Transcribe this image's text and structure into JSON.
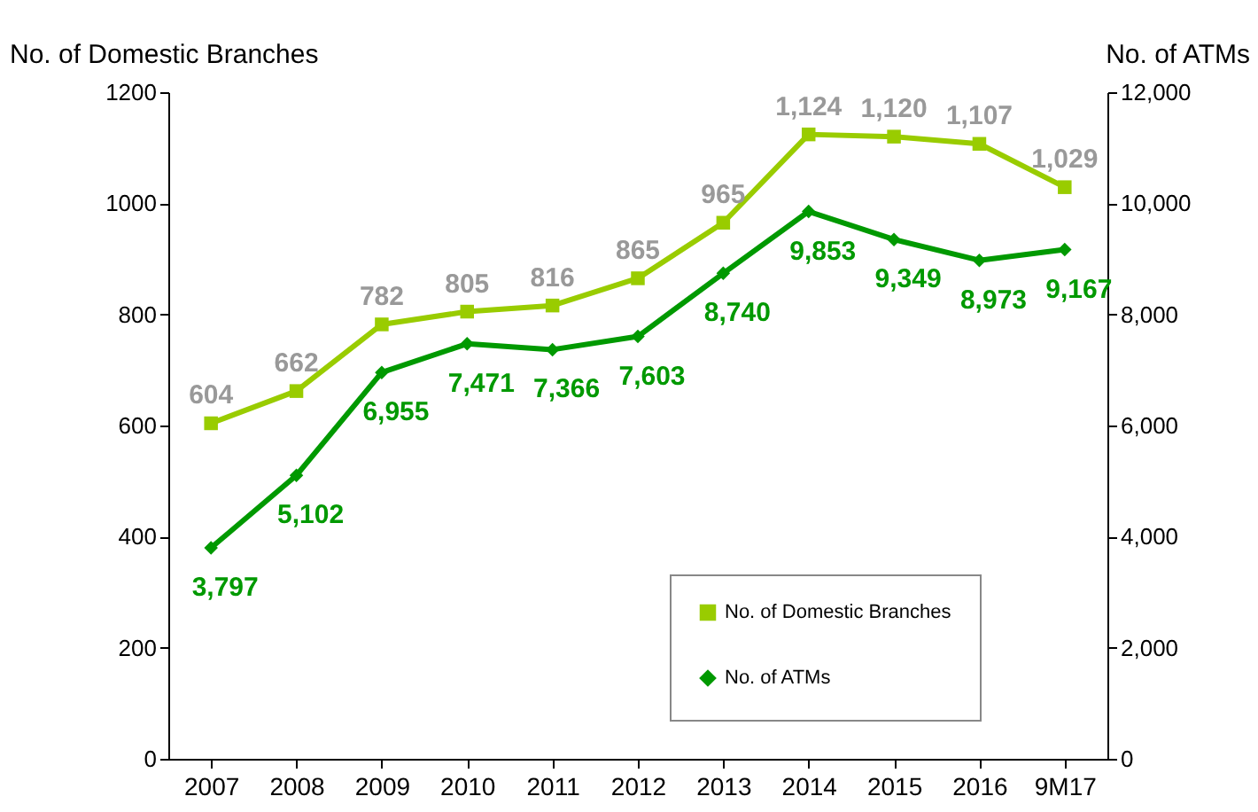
{
  "chart_data": {
    "type": "line",
    "ylabel": "No. of Domestic Branches",
    "y2label": "No. of ATMs",
    "categories": [
      "2007",
      "2008",
      "2009",
      "2010",
      "2011",
      "2012",
      "2013",
      "2014",
      "2015",
      "2016",
      "9M17"
    ],
    "series": [
      {
        "name": "No. of Domestic Branches",
        "color": "#99cc00",
        "marker": "square",
        "values": [
          604,
          662,
          782,
          805,
          816,
          865,
          965,
          1124,
          1120,
          1107,
          1029
        ],
        "value_labels": [
          "604",
          "662",
          "782",
          "805",
          "816",
          "865",
          "965",
          "1,124",
          "1,120",
          "1,107",
          "1,029"
        ]
      },
      {
        "name": "No. of ATMs",
        "color": "#009900",
        "axis": "y2",
        "marker": "diamond",
        "values": [
          3797,
          5102,
          6955,
          7471,
          7366,
          7603,
          8740,
          9853,
          9349,
          8973,
          9167
        ],
        "value_labels": [
          "3,797",
          "5,102",
          "6,955",
          "7,471",
          "7,366",
          "7,603",
          "8,740",
          "9,853",
          "9,349",
          "8,973",
          "9,167"
        ]
      }
    ],
    "ylim": [
      0,
      1200
    ],
    "yticks": [
      0,
      200,
      400,
      600,
      800,
      1000,
      1200
    ],
    "y2lim": [
      0,
      12000
    ],
    "y2ticks": [
      0,
      {
        "value": 2000,
        "label": "2,000"
      },
      {
        "value": 4000,
        "label": "4,000"
      },
      {
        "value": 6000,
        "label": "6,000"
      },
      {
        "value": 8000,
        "label": "8,000"
      },
      {
        "value": 10000,
        "label": "10,000"
      },
      {
        "value": 12000,
        "label": "12,000"
      }
    ],
    "legend": "bottom right",
    "grid": false
  }
}
